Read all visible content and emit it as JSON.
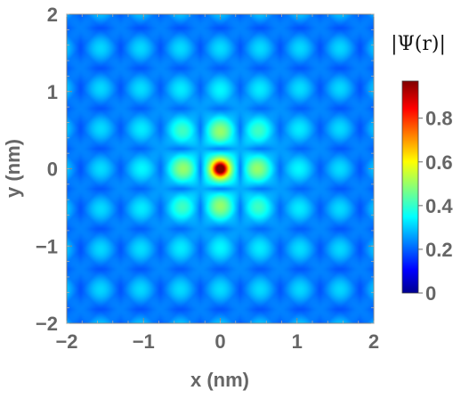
{
  "chart_data": {
    "type": "heatmap",
    "title": "",
    "xlabel": "x (nm)",
    "ylabel": "y (nm)",
    "xlim": [
      -2,
      2
    ],
    "ylim": [
      -2,
      2
    ],
    "x_ticks": [
      -2,
      -1,
      0,
      1,
      2
    ],
    "y_ticks": [
      -2,
      -1,
      0,
      1,
      2
    ],
    "x_tick_labels": [
      "−2",
      "−1",
      "0",
      "1",
      "2"
    ],
    "y_tick_labels": [
      "−2",
      "−1",
      "0",
      "1",
      "2"
    ],
    "colorbar": {
      "title": "|Ψ(r)|",
      "range": [
        0,
        0.97
      ],
      "ticks": [
        0,
        0.2,
        0.4,
        0.6,
        0.8
      ],
      "tick_labels": [
        "0",
        "0.2",
        "0.4",
        "0.6",
        "0.8"
      ],
      "colormap": "jet",
      "placement": "right"
    },
    "peaks": [
      {
        "x": 0.0,
        "y": 0.0,
        "value": 0.97
      },
      {
        "x": 0.52,
        "y": 0.0,
        "value": 0.6
      },
      {
        "x": -0.52,
        "y": 0.0,
        "value": 0.6
      },
      {
        "x": 0.0,
        "y": 0.52,
        "value": 0.55
      },
      {
        "x": 0.0,
        "y": -0.52,
        "value": 0.55
      },
      {
        "x": 0.52,
        "y": 0.52,
        "value": 0.55
      },
      {
        "x": -0.52,
        "y": 0.52,
        "value": 0.55
      },
      {
        "x": 0.52,
        "y": -0.52,
        "value": 0.55
      },
      {
        "x": -0.52,
        "y": -0.52,
        "value": 0.55
      }
    ],
    "grid": false
  },
  "colors": {
    "frame": "#888888",
    "text": "#666666",
    "background": "#ffffff"
  }
}
